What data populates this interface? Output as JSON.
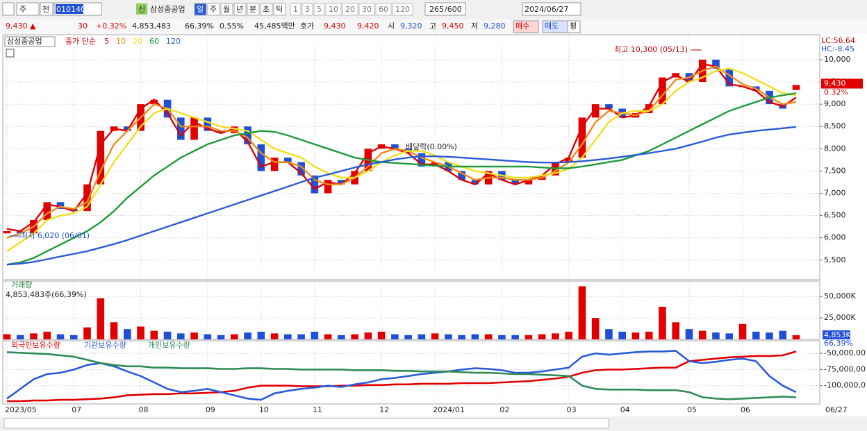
{
  "toolbar": {
    "market": "주",
    "mode": "전",
    "code": "010140",
    "badge": "신",
    "name": "삼성중공업",
    "periods": [
      "일",
      "주",
      "월",
      "년",
      "분",
      "초",
      "틱"
    ],
    "intervals": [
      "1",
      "3",
      "5",
      "10",
      "20",
      "30",
      "60",
      "120"
    ],
    "count": "265",
    "max": "/600",
    "date": "2024/06/27"
  },
  "quote": {
    "price": "9,430 ▲",
    "change": "30",
    "rate": "+0.32%",
    "volume": "4,853,483",
    "vol_ratio": "66.39%",
    "turnover": "0.55%",
    "amount": "45,485백만",
    "bid_label": "호가",
    "ask": "9,430",
    "bid": "9,420",
    "open_label": "시",
    "open": "9,320",
    "high_label": "고",
    "high": "9,450",
    "low_label": "저",
    "low": "9,280",
    "buy": "매수",
    "sell": "매도",
    "avg": "평"
  },
  "cursor_date": "06/27",
  "chart_data": [
    {
      "type": "candlestick",
      "title": "삼성중공업",
      "legend_title": "종가 단순",
      "lc": "LC:56.64",
      "hc": "HC:-8.45",
      "last_label": "9,430",
      "last_pct": "0.32%",
      "annotations": {
        "high": "최고 10,300 (05/13)",
        "low": "최저 6,020 (06/01)",
        "dividend": "배당락(0.00%)"
      },
      "colors": {
        "up": "#e00000",
        "down": "#1f4fd6"
      },
      "categories": [
        "2023/05",
        null,
        null,
        null,
        null,
        "07",
        null,
        null,
        null,
        null,
        "08",
        null,
        null,
        null,
        null,
        "09",
        null,
        null,
        null,
        "10",
        null,
        null,
        null,
        "11",
        null,
        null,
        null,
        null,
        "12",
        null,
        null,
        null,
        "2024/01",
        null,
        null,
        null,
        null,
        "02",
        null,
        null,
        null,
        null,
        "03",
        null,
        null,
        null,
        "04",
        null,
        null,
        null,
        null,
        "05",
        null,
        null,
        null,
        "06",
        null,
        null,
        null,
        null
      ],
      "open": [
        6100,
        6150,
        6100,
        6400,
        6800,
        6650,
        6600,
        7200,
        8400,
        8500,
        8400,
        9000,
        9100,
        8700,
        8200,
        8700,
        8400,
        8350,
        8500,
        8100,
        7500,
        7800,
        7700,
        7400,
        7000,
        7300,
        7200,
        7500,
        8000,
        8100,
        8000,
        7900,
        7600,
        7700,
        7500,
        7300,
        7200,
        7500,
        7300,
        7200,
        7300,
        7400,
        7700,
        7800,
        8700,
        9000,
        8900,
        8700,
        8800,
        9000,
        9600,
        9700,
        9500,
        10000,
        9800,
        9400,
        9400,
        9300,
        9000,
        9320
      ],
      "close": [
        6150,
        6100,
        6400,
        6800,
        6650,
        6600,
        7200,
        8400,
        8500,
        8400,
        9000,
        9100,
        8700,
        8200,
        8700,
        8400,
        8350,
        8500,
        8100,
        7500,
        7800,
        7700,
        7400,
        7000,
        7300,
        7200,
        7500,
        8000,
        8100,
        8000,
        7900,
        7600,
        7700,
        7500,
        7300,
        7200,
        7500,
        7300,
        7200,
        7300,
        7400,
        7700,
        7800,
        8700,
        9000,
        8900,
        8700,
        8800,
        9000,
        9600,
        9700,
        9500,
        10000,
        9800,
        9400,
        9400,
        9300,
        9000,
        8900,
        9430
      ],
      "series": [
        {
          "name": "5",
          "color": "#e00000",
          "values": [
            6200,
            6150,
            6350,
            6750,
            6700,
            6600,
            7000,
            8100,
            8450,
            8400,
            8900,
            9100,
            8800,
            8300,
            8600,
            8450,
            8350,
            8450,
            8150,
            7600,
            7700,
            7700,
            7450,
            7100,
            7250,
            7200,
            7450,
            7900,
            8050,
            8000,
            7900,
            7650,
            7650,
            7500,
            7300,
            7200,
            7450,
            7300,
            7200,
            7300,
            7400,
            7650,
            7800,
            8500,
            8900,
            8900,
            8700,
            8750,
            8950,
            9500,
            9650,
            9500,
            9900,
            9850,
            9450,
            9400,
            9300,
            9050,
            8950,
            9150
          ]
        },
        {
          "name": "10",
          "color": "#f08c1e",
          "values": [
            6000,
            6100,
            6250,
            6550,
            6700,
            6650,
            6800,
            7500,
            8100,
            8400,
            8700,
            9000,
            8900,
            8500,
            8500,
            8500,
            8400,
            8400,
            8250,
            7900,
            7700,
            7700,
            7600,
            7300,
            7200,
            7200,
            7350,
            7600,
            7900,
            8000,
            7950,
            7800,
            7700,
            7600,
            7450,
            7300,
            7350,
            7350,
            7300,
            7300,
            7350,
            7500,
            7700,
            8100,
            8600,
            8850,
            8800,
            8750,
            8850,
            9200,
            9550,
            9600,
            9750,
            9850,
            9650,
            9450,
            9350,
            9150,
            9000,
            9050
          ]
        },
        {
          "name": "20",
          "color": "#f0e020",
          "values": [
            5700,
            5900,
            6100,
            6400,
            6500,
            6550,
            6700,
            7200,
            7700,
            8100,
            8500,
            8800,
            8900,
            8800,
            8700,
            8600,
            8500,
            8450,
            8400,
            8200,
            8000,
            7900,
            7800,
            7600,
            7450,
            7350,
            7350,
            7500,
            7700,
            7850,
            7950,
            7950,
            7850,
            7700,
            7600,
            7500,
            7450,
            7400,
            7350,
            7350,
            7400,
            7450,
            7550,
            7800,
            8200,
            8600,
            8800,
            8850,
            8850,
            9000,
            9300,
            9500,
            9600,
            9750,
            9800,
            9700,
            9550,
            9400,
            9250,
            9200
          ]
        },
        {
          "name": "60",
          "color": "#1e9a3c",
          "values": [
            5400,
            5450,
            5550,
            5700,
            5850,
            6000,
            6150,
            6350,
            6600,
            6900,
            7150,
            7400,
            7600,
            7800,
            7950,
            8100,
            8200,
            8300,
            8350,
            8400,
            8380,
            8300,
            8200,
            8100,
            8000,
            7900,
            7800,
            7750,
            7700,
            7680,
            7660,
            7640,
            7620,
            7600,
            7600,
            7600,
            7600,
            7600,
            7600,
            7600,
            7580,
            7560,
            7560,
            7600,
            7650,
            7700,
            7750,
            7850,
            7950,
            8100,
            8250,
            8400,
            8550,
            8700,
            8850,
            8950,
            9050,
            9150,
            9200,
            9250
          ]
        },
        {
          "name": "120",
          "color": "#2a5bd7",
          "values": [
            5400,
            5420,
            5460,
            5520,
            5580,
            5640,
            5700,
            5780,
            5860,
            5950,
            6050,
            6150,
            6250,
            6350,
            6450,
            6550,
            6650,
            6750,
            6850,
            6950,
            7050,
            7150,
            7250,
            7350,
            7420,
            7500,
            7580,
            7650,
            7700,
            7760,
            7800,
            7830,
            7830,
            7820,
            7800,
            7780,
            7760,
            7740,
            7720,
            7700,
            7690,
            7690,
            7700,
            7720,
            7750,
            7780,
            7820,
            7860,
            7900,
            7950,
            8000,
            8080,
            8160,
            8250,
            8320,
            8360,
            8400,
            8430,
            8460,
            8490
          ]
        }
      ],
      "ylim": [
        5060,
        10560
      ],
      "yticks": [
        {
          "value": 5500,
          "label": "5,500"
        },
        {
          "value": 6000,
          "label": "6,000"
        },
        {
          "value": 6500,
          "label": "6,500"
        },
        {
          "value": 7000,
          "label": "7,000"
        },
        {
          "value": 7500,
          "label": "7,500"
        },
        {
          "value": 8000,
          "label": "8,000"
        },
        {
          "value": 8500,
          "label": "8,500"
        },
        {
          "value": 9000,
          "label": "9,000"
        },
        {
          "value": 9500,
          "label": "9,500"
        },
        {
          "value": 10000,
          "label": "10,000"
        }
      ],
      "grid": true
    },
    {
      "type": "bar",
      "title": "거래량",
      "subtitle": "4,853,483주(66,39%)",
      "last_label": "4,853K",
      "last_pct": "66,39%",
      "values": [
        6000,
        5000,
        7000,
        9000,
        6000,
        5000,
        14000,
        48000,
        20000,
        12000,
        15000,
        10000,
        9000,
        7000,
        8000,
        6000,
        5000,
        6000,
        8000,
        9000,
        7000,
        6000,
        6000,
        9000,
        6000,
        5000,
        6000,
        8000,
        9000,
        6000,
        5000,
        6000,
        7000,
        6000,
        5000,
        6000,
        6000,
        5000,
        5000,
        5000,
        6000,
        7000,
        9000,
        62000,
        25000,
        12000,
        9000,
        8000,
        9000,
        38000,
        20000,
        12000,
        10000,
        8000,
        7000,
        18000,
        9000,
        8000,
        10000,
        4853
      ],
      "ylim": [
        0,
        68000
      ],
      "yticks": [
        {
          "value": 25000,
          "label": "25,000K"
        },
        {
          "value": 50000,
          "label": "50,000K"
        }
      ]
    },
    {
      "type": "line",
      "series": [
        {
          "name": "외국인보유수량",
          "color": "#e00000",
          "values": [
            -124000000,
            -124000000,
            -123000000,
            -123000000,
            -122000000,
            -122000000,
            -121000000,
            -120000000,
            -118000000,
            -115000000,
            -114000000,
            -113000000,
            -113000000,
            -112000000,
            -112000000,
            -111000000,
            -110000000,
            -108000000,
            -103000000,
            -100000000,
            -100000000,
            -100000000,
            -101000000,
            -101000000,
            -101000000,
            -100000000,
            -100000000,
            -99000000,
            -99000000,
            -98000000,
            -98000000,
            -97000000,
            -97000000,
            -97000000,
            -96000000,
            -96000000,
            -96000000,
            -95000000,
            -94000000,
            -93000000,
            -91000000,
            -89000000,
            -86000000,
            -80000000,
            -76000000,
            -75000000,
            -75000000,
            -74000000,
            -73000000,
            -72000000,
            -72000000,
            -62000000,
            -60000000,
            -58000000,
            -56000000,
            -55000000,
            -54000000,
            -54000000,
            -53000000,
            -47000000
          ]
        },
        {
          "name": "기관보유수량",
          "color": "#2a5bd7",
          "values": [
            -120000000,
            -105000000,
            -90000000,
            -82000000,
            -80000000,
            -75000000,
            -68000000,
            -65000000,
            -70000000,
            -78000000,
            -85000000,
            -95000000,
            -105000000,
            -110000000,
            -108000000,
            -105000000,
            -110000000,
            -115000000,
            -120000000,
            -122000000,
            -112000000,
            -108000000,
            -105000000,
            -103000000,
            -100000000,
            -102000000,
            -98000000,
            -95000000,
            -90000000,
            -88000000,
            -85000000,
            -82000000,
            -80000000,
            -78000000,
            -75000000,
            -73000000,
            -74000000,
            -76000000,
            -80000000,
            -80000000,
            -78000000,
            -75000000,
            -72000000,
            -55000000,
            -50000000,
            -52000000,
            -50000000,
            -48000000,
            -47000000,
            -47000000,
            -46000000,
            -62000000,
            -65000000,
            -63000000,
            -60000000,
            -58000000,
            -62000000,
            -85000000,
            -100000000,
            -110000000
          ]
        },
        {
          "name": "개인보유수량",
          "color": "#2e8b57",
          "values": [
            -48000000,
            -49000000,
            -50000000,
            -51000000,
            -53000000,
            -55000000,
            -60000000,
            -65000000,
            -68000000,
            -70000000,
            -70000000,
            -72000000,
            -72000000,
            -73000000,
            -73000000,
            -73000000,
            -74000000,
            -74000000,
            -73000000,
            -73000000,
            -74000000,
            -74000000,
            -75000000,
            -75000000,
            -75000000,
            -75000000,
            -76000000,
            -76000000,
            -76000000,
            -77000000,
            -77000000,
            -78000000,
            -78000000,
            -78000000,
            -79000000,
            -80000000,
            -80000000,
            -81000000,
            -82000000,
            -82000000,
            -83000000,
            -84000000,
            -85000000,
            -100000000,
            -105000000,
            -106000000,
            -106000000,
            -106000000,
            -107000000,
            -107000000,
            -107000000,
            -110000000,
            -118000000,
            -120000000,
            -121000000,
            -120000000,
            -119000000,
            -118000000,
            -117000000,
            -118000000
          ]
        }
      ],
      "ylim": [
        -128300000,
        -30400000
      ],
      "yticks": [
        {
          "value": -50000000,
          "label": "-50,000,00"
        },
        {
          "value": -75000000,
          "label": "-75,000,00"
        },
        {
          "value": -100000000,
          "label": "-100,000,0"
        }
      ]
    }
  ]
}
